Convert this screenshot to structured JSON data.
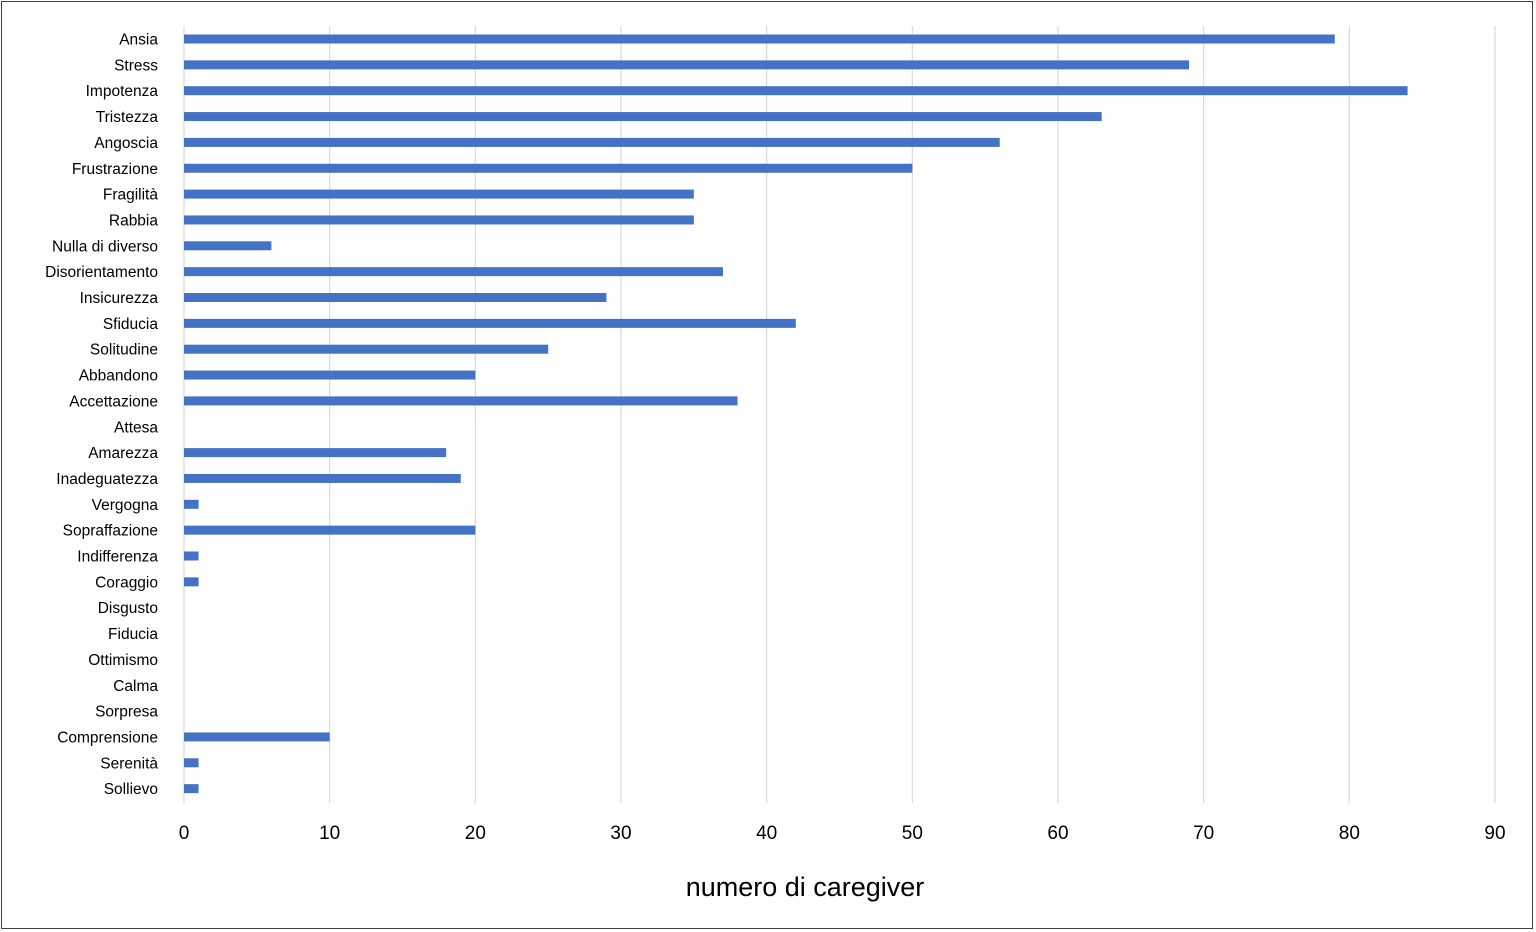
{
  "chart_data": {
    "type": "bar",
    "orientation": "horizontal",
    "title": "",
    "xlabel": "numero di caregiver",
    "ylabel": "",
    "xlim": [
      0,
      90
    ],
    "x_ticks": [
      0,
      10,
      20,
      30,
      40,
      50,
      60,
      70,
      80,
      90
    ],
    "grid": "vertical",
    "legend": "none",
    "bar_color": "#4472c4",
    "categories": [
      "Ansia",
      "Stress",
      "Impotenza",
      "Tristezza",
      "Angoscia",
      "Frustrazione",
      "Fragilità",
      "Rabbia",
      "Nulla di diverso",
      "Disorientamento",
      "Insicurezza",
      "Sfiducia",
      "Solitudine",
      "Abbandono",
      "Accettazione",
      "Attesa",
      "Amarezza",
      "Inadeguatezza",
      "Vergogna",
      "Sopraffazione",
      "Indifferenza",
      "Coraggio",
      "Disgusto",
      "Fiducia",
      "Ottimismo",
      "Calma",
      "Sorpresa",
      "Comprensione",
      "Serenità",
      "Sollievo"
    ],
    "values": [
      79,
      69,
      84,
      63,
      56,
      50,
      35,
      35,
      6,
      37,
      29,
      42,
      25,
      20,
      38,
      0,
      18,
      19,
      1,
      20,
      1,
      1,
      0,
      0,
      0,
      0,
      0,
      10,
      1,
      1
    ]
  }
}
